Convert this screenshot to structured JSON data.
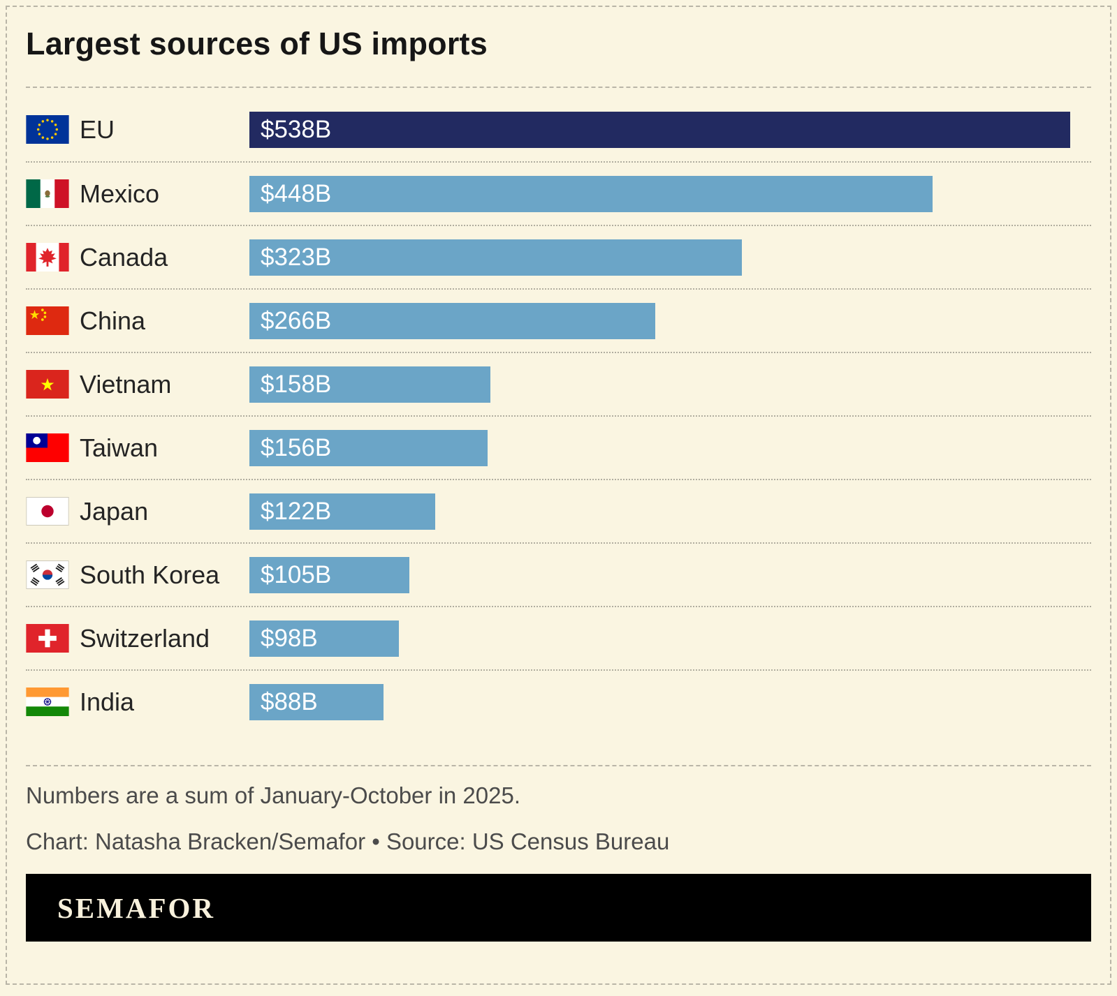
{
  "title": "Largest sources of US imports",
  "notes": {
    "methodology": "Numbers are a sum of January-October in 2025.",
    "credit": "Chart: Natasha Bracken/Semafor • Source: US Census Bureau"
  },
  "brand": {
    "wordmark": "SEMAFOR"
  },
  "colors": {
    "background": "#FAF5E1",
    "bar_default": "#6BA5C7",
    "bar_highlight": "#222A61",
    "bar_label_text": "#FFFFFF",
    "brand_bar_background": "#000000"
  },
  "chart_data": {
    "type": "bar",
    "orientation": "horizontal",
    "title": "Largest sources of US imports",
    "xlim": [
      0,
      538
    ],
    "highlight_index": 0,
    "legend": "none",
    "grid": "off",
    "categories": [
      "EU",
      "Mexico",
      "Canada",
      "China",
      "Vietnam",
      "Taiwan",
      "Japan",
      "South Korea",
      "Switzerland",
      "India"
    ],
    "values": [
      538,
      448,
      323,
      266,
      158,
      156,
      122,
      105,
      98,
      88
    ],
    "value_labels": [
      "$538B",
      "$448B",
      "$323B",
      "$266B",
      "$158B",
      "$156B",
      "$122B",
      "$105B",
      "$98B",
      "$88B"
    ],
    "flag_icons": [
      "eu",
      "mexico",
      "canada",
      "china",
      "vietnam",
      "taiwan",
      "japan",
      "south-korea",
      "switzerland",
      "india"
    ]
  }
}
